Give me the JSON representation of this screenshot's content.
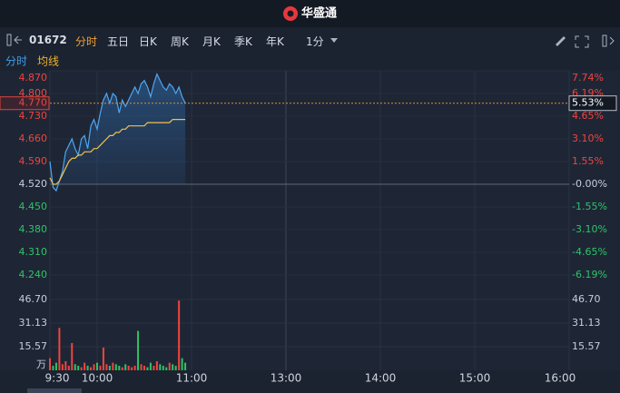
{
  "header": {
    "logo": "华盛通"
  },
  "toolbar": {
    "symbol": "01672",
    "tabs": [
      "分时",
      "五日",
      "日K",
      "周K",
      "月K",
      "季K",
      "年K"
    ],
    "interval": "1分"
  },
  "chart_data": [
    {
      "type": "line",
      "x": [
        0,
        2,
        4,
        6,
        8,
        10,
        12,
        14,
        16,
        18,
        20,
        22,
        24,
        26,
        28,
        30,
        32,
        34,
        36,
        38,
        40,
        42,
        44,
        46,
        48,
        50,
        52,
        54,
        56,
        58,
        60,
        62,
        64,
        66,
        68,
        70,
        72,
        74,
        76,
        78,
        80,
        82,
        84,
        86
      ],
      "series": [
        {
          "name": "分时",
          "color": "#4ea6f0",
          "values": [
            4.59,
            4.51,
            4.5,
            4.53,
            4.56,
            4.62,
            4.64,
            4.66,
            4.63,
            4.61,
            4.66,
            4.67,
            4.63,
            4.7,
            4.72,
            4.69,
            4.74,
            4.78,
            4.8,
            4.77,
            4.8,
            4.79,
            4.74,
            4.78,
            4.76,
            4.78,
            4.8,
            4.82,
            4.8,
            4.83,
            4.84,
            4.82,
            4.79,
            4.83,
            4.86,
            4.84,
            4.82,
            4.81,
            4.83,
            4.82,
            4.8,
            4.82,
            4.79,
            4.77
          ]
        },
        {
          "name": "均线",
          "color": "#f2c14e",
          "values": [
            4.54,
            4.52,
            4.52,
            4.53,
            4.55,
            4.57,
            4.59,
            4.6,
            4.6,
            4.61,
            4.61,
            4.62,
            4.62,
            4.62,
            4.63,
            4.63,
            4.64,
            4.65,
            4.66,
            4.67,
            4.67,
            4.68,
            4.68,
            4.69,
            4.69,
            4.7,
            4.7,
            4.7,
            4.7,
            4.7,
            4.7,
            4.71,
            4.71,
            4.71,
            4.71,
            4.71,
            4.71,
            4.71,
            4.71,
            4.72,
            4.72,
            4.72,
            4.72,
            4.72
          ]
        }
      ],
      "xlim": [
        0,
        330
      ],
      "ylim": [
        4.17,
        4.87
      ],
      "yticks": [
        {
          "value": 4.87,
          "label": "4.870"
        },
        {
          "value": 4.8,
          "label": "4.800"
        },
        {
          "value": 4.73,
          "label": "4.730"
        },
        {
          "value": 4.66,
          "label": "4.660"
        },
        {
          "value": 4.59,
          "label": "4.590"
        },
        {
          "value": 4.52,
          "label": "4.520"
        },
        {
          "value": 4.45,
          "label": "4.450"
        },
        {
          "value": 4.38,
          "label": "4.380"
        },
        {
          "value": 4.31,
          "label": "4.310"
        },
        {
          "value": 4.24,
          "label": "4.240"
        }
      ],
      "y2lim": [
        -7.74,
        7.74
      ],
      "y2ticks": [
        {
          "value": 7.74,
          "label": "7.74%"
        },
        {
          "value": 6.19,
          "label": "6.19%"
        },
        {
          "value": 4.65,
          "label": "4.65%"
        },
        {
          "value": 3.1,
          "label": "3.10%"
        },
        {
          "value": 1.55,
          "label": "1.55%"
        },
        {
          "value": 0,
          "label": "-0.00%"
        },
        {
          "value": -1.55,
          "label": "-1.55%"
        },
        {
          "value": -3.1,
          "label": "-3.10%"
        },
        {
          "value": -4.65,
          "label": "-4.65%"
        },
        {
          "value": -6.19,
          "label": "-6.19%"
        }
      ],
      "prev_close": 4.52,
      "last_price": {
        "value": 4.77,
        "label": "4.770"
      },
      "last_change": {
        "value": 5.53,
        "label": "5.53%"
      },
      "up_color": "#f0443c",
      "down_color": "#2ec364"
    },
    {
      "type": "bar",
      "x": [
        0,
        2,
        4,
        6,
        8,
        10,
        12,
        14,
        16,
        18,
        20,
        22,
        24,
        26,
        28,
        30,
        32,
        34,
        36,
        38,
        40,
        42,
        44,
        46,
        48,
        50,
        52,
        54,
        56,
        58,
        60,
        62,
        64,
        66,
        68,
        70,
        72,
        74,
        76,
        78,
        80,
        82,
        84,
        86
      ],
      "values": [
        8,
        3,
        5,
        28,
        4,
        6,
        3,
        18,
        4,
        3,
        2,
        5,
        3,
        2,
        4,
        5,
        3,
        15,
        4,
        3,
        5,
        4,
        3,
        2,
        4,
        3,
        2,
        3,
        26,
        4,
        3,
        2,
        5,
        3,
        6,
        4,
        3,
        2,
        5,
        4,
        3,
        46,
        8,
        5
      ],
      "xlim": [
        0,
        330
      ],
      "ylim": [
        0,
        46.7
      ],
      "yticks": [
        15.57,
        31.13,
        {
          "value": 46.7,
          "label": "46.70"
        }
      ],
      "unit": "万",
      "xticks": [
        {
          "value": 0,
          "label": "9:30"
        },
        {
          "value": 30,
          "label": "10:00"
        },
        {
          "value": 90,
          "label": "11:00"
        },
        {
          "value": 150,
          "label": "13:00"
        },
        {
          "value": 210,
          "label": "14:00"
        },
        {
          "value": 270,
          "label": "15:00"
        },
        {
          "value": 330,
          "label": "16:00"
        }
      ]
    }
  ]
}
